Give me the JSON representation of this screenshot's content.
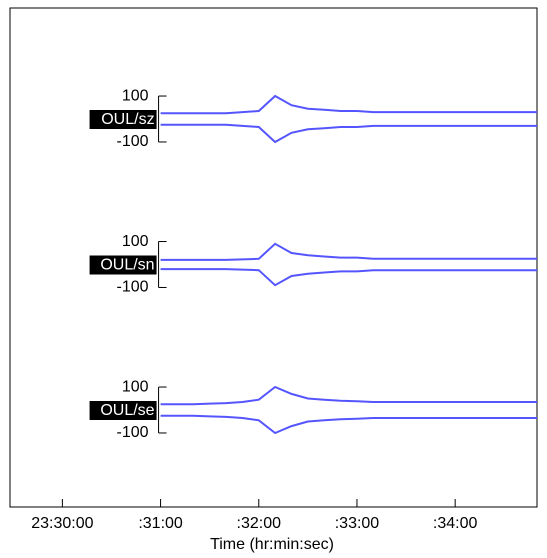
{
  "chart_data": {
    "type": "line",
    "xlabel": "Time (hr:min:sec)",
    "x": [
      60,
      70,
      80,
      90,
      100,
      110,
      120,
      130,
      140,
      150,
      160,
      170,
      180,
      190,
      200,
      210,
      220,
      230,
      240,
      250,
      260,
      270,
      280,
      290
    ],
    "xlim": [
      -32,
      290
    ],
    "xticks": [
      {
        "value": 0,
        "label": "23:30:00"
      },
      {
        "value": 60,
        "label": ":31:00"
      },
      {
        "value": 120,
        "label": ":32:00"
      },
      {
        "value": 180,
        "label": ":33:00"
      },
      {
        "value": 240,
        "label": ":34:00"
      }
    ],
    "ylim": [
      -320,
      320
    ],
    "yticks": [
      100,
      -100
    ],
    "series": [
      {
        "name": "OUL/sz",
        "color": "#5555ff",
        "values": [
          25,
          25,
          25,
          25,
          25,
          30,
          35,
          100,
          60,
          45,
          40,
          35,
          35,
          30,
          30,
          30,
          30,
          30,
          30,
          30,
          30,
          30,
          30,
          30
        ]
      },
      {
        "name": "OUL/sn",
        "color": "#5555ff",
        "values": [
          20,
          20,
          20,
          20,
          20,
          22,
          25,
          90,
          50,
          40,
          35,
          30,
          30,
          25,
          25,
          25,
          25,
          25,
          25,
          25,
          25,
          25,
          25,
          25
        ]
      },
      {
        "name": "OUL/se",
        "color": "#5555ff",
        "values": [
          25,
          25,
          25,
          28,
          30,
          35,
          45,
          100,
          70,
          50,
          45,
          40,
          38,
          35,
          35,
          35,
          35,
          35,
          35,
          35,
          35,
          35,
          35,
          35
        ]
      }
    ]
  }
}
